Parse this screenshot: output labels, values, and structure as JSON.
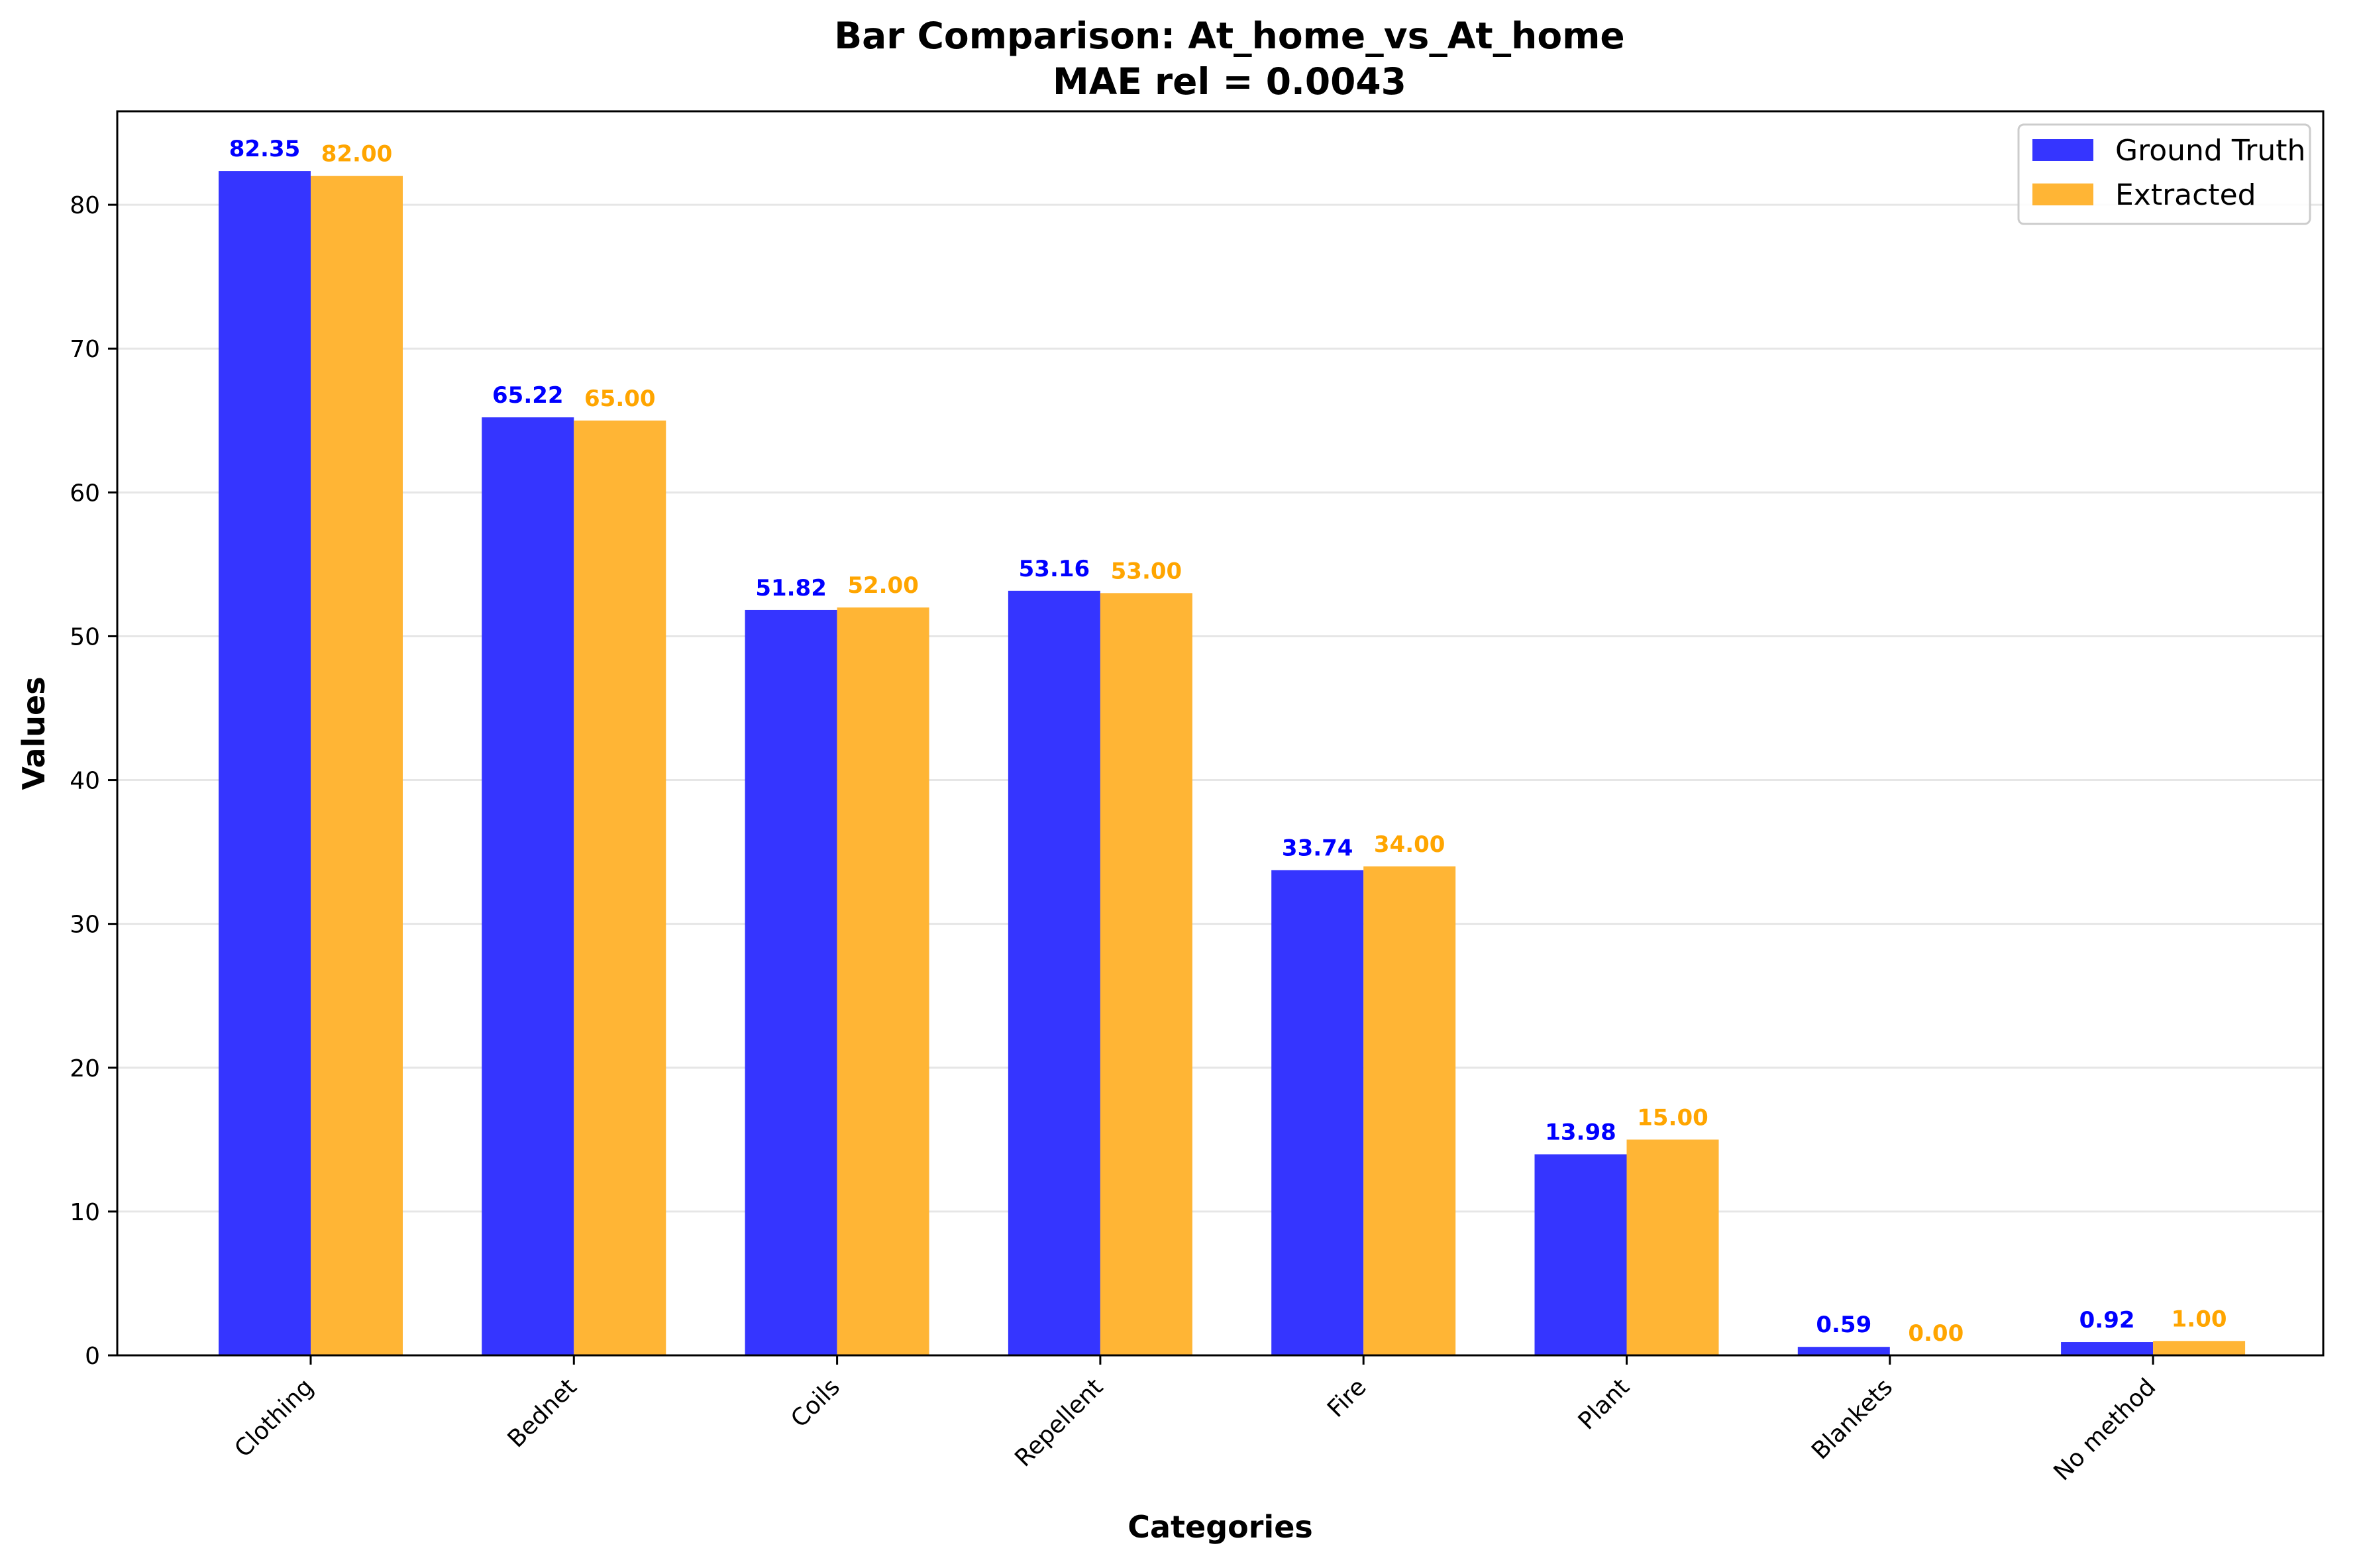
{
  "chart_data": {
    "type": "bar",
    "title_line1": "Bar Comparison: At_home_vs_At_home",
    "title_line2": "MAE rel = 0.0043",
    "xlabel": "Categories",
    "ylabel": "Values",
    "ylim": [
      0,
      86.5
    ],
    "yticks": [
      "0",
      "10",
      "20",
      "30",
      "40",
      "50",
      "60",
      "70",
      "80"
    ],
    "grid": "horizontal",
    "legend_position": "top-right",
    "categories": [
      "Clothing",
      "Bednet",
      "Coils",
      "Repellent",
      "Fire",
      "Plant",
      "Blankets",
      "No method"
    ],
    "series": [
      {
        "name": "Ground Truth",
        "color": "#0000ff",
        "bar_color": "#3535ff",
        "values": [
          82.35,
          65.22,
          51.82,
          53.16,
          33.74,
          13.98,
          0.59,
          0.92
        ],
        "labels": [
          "82.35",
          "65.22",
          "51.82",
          "53.16",
          "33.74",
          "13.98",
          "0.59",
          "0.92"
        ]
      },
      {
        "name": "Extracted",
        "color": "#ffa500",
        "bar_color": "#ffb535",
        "values": [
          82.0,
          65.0,
          52.0,
          53.0,
          34.0,
          15.0,
          0.0,
          1.0
        ],
        "labels": [
          "82.00",
          "65.00",
          "52.00",
          "53.00",
          "34.00",
          "15.00",
          "0.00",
          "1.00"
        ]
      }
    ]
  }
}
